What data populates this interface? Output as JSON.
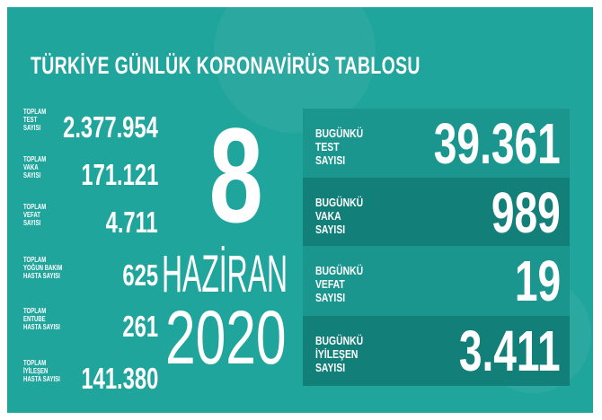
{
  "title": "TÜRKİYE GÜNLÜK KORONAVİRÜS TABLOSU",
  "colors": {
    "background": "#20a59c",
    "panel_light": "#1b968f",
    "panel_dark": "#137f79"
  },
  "totals": [
    {
      "label": [
        "TOPLAM",
        "TEST",
        "SAYISI"
      ],
      "value": "2.377.954"
    },
    {
      "label": [
        "TOPLAM",
        "VAKA",
        "SAYISI"
      ],
      "value": "171.121"
    },
    {
      "label": [
        "TOPLAM",
        "VEFAT",
        "SAYISI"
      ],
      "value": "4.711"
    },
    {
      "label": [
        "TOPLAM",
        "YOĞUN BAKIM",
        "HASTA SAYISI"
      ],
      "value": "625"
    },
    {
      "label": [
        "TOPLAM",
        "ENTUBE",
        "HASTA SAYISI"
      ],
      "value": "261"
    },
    {
      "label": [
        "TOPLAM",
        "İYİLEŞEN",
        "HASTA SAYISI"
      ],
      "value": "141.380"
    }
  ],
  "date": {
    "day": "8",
    "month": "HAZİRAN",
    "year": "2020"
  },
  "today": [
    {
      "label": [
        "BUGÜNKÜ",
        "TEST",
        "SAYISI"
      ],
      "value": "39.361"
    },
    {
      "label": [
        "BUGÜNKÜ",
        "VAKA",
        "SAYISI"
      ],
      "value": "989"
    },
    {
      "label": [
        "BUGÜNKÜ",
        "VEFAT",
        "SAYISI"
      ],
      "value": "19"
    },
    {
      "label": [
        "BUGÜNKÜ",
        "İYİLEŞEN",
        "SAYISI"
      ],
      "value": "3.411"
    }
  ]
}
